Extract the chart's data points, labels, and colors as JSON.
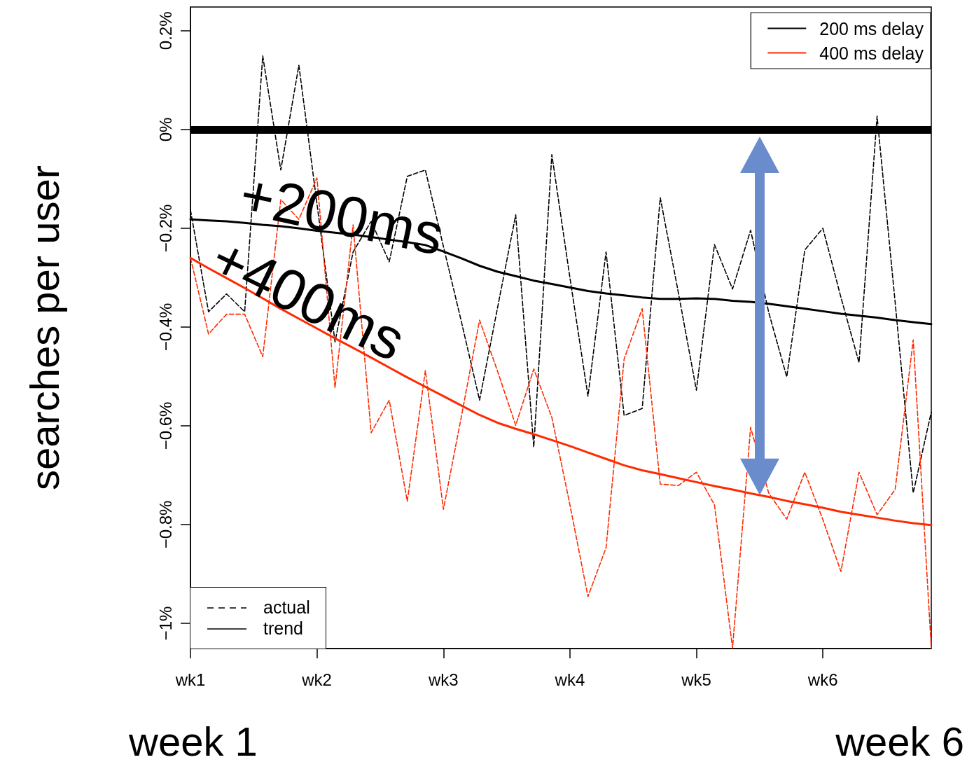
{
  "chart_data": {
    "type": "line",
    "ylabel": "searches per user",
    "categories": [
      "wk1",
      null,
      null,
      null,
      null,
      null,
      null,
      "wk2",
      null,
      null,
      null,
      null,
      null,
      null,
      "wk3",
      null,
      null,
      null,
      null,
      null,
      null,
      "wk4",
      null,
      null,
      null,
      null,
      null,
      null,
      "wk5",
      null,
      null,
      null,
      null,
      null,
      null,
      "wk6",
      null,
      null,
      null,
      null,
      null,
      null
    ],
    "ylim": [
      -1.051,
      0.248
    ],
    "yticks": [
      {
        "value": 0.2,
        "label": "0.2%"
      },
      {
        "value": 0,
        "label": "0%"
      },
      {
        "value": -0.2,
        "label": "−0.2%"
      },
      {
        "value": -0.4,
        "label": "−0.4%"
      },
      {
        "value": -0.6,
        "label": "−0.6%"
      },
      {
        "value": -0.8,
        "label": "−0.8%"
      },
      {
        "value": -1,
        "label": "−1%"
      }
    ],
    "grid": false,
    "legend": "top right",
    "marker": "none",
    "series": [
      {
        "name": "200 ms delay",
        "color": "#000000",
        "line_style": "dashed",
        "values": [
          -0.163,
          -0.369,
          -0.333,
          -0.369,
          0.149,
          -0.082,
          0.13,
          -0.15,
          -0.43,
          -0.248,
          -0.186,
          -0.268,
          -0.095,
          -0.082,
          -0.237,
          -0.39,
          -0.548,
          -0.36,
          -0.173,
          -0.643,
          -0.051,
          -0.3,
          -0.54,
          -0.248,
          -0.579,
          -0.565,
          -0.138,
          -0.33,
          -0.528,
          -0.233,
          -0.323,
          -0.204,
          -0.37,
          -0.501,
          -0.244,
          -0.2,
          -0.34,
          -0.472,
          0.027,
          -0.35,
          -0.736,
          -0.572
        ]
      },
      {
        "name": "400 ms delay",
        "color": "#ff2a00",
        "line_style": "dashed",
        "values": [
          -0.26,
          -0.414,
          -0.374,
          -0.374,
          -0.46,
          -0.142,
          -0.182,
          -0.098,
          -0.523,
          -0.193,
          -0.614,
          -0.548,
          -0.753,
          -0.488,
          -0.769,
          -0.58,
          -0.386,
          -0.49,
          -0.599,
          -0.485,
          -0.583,
          -0.76,
          -0.946,
          -0.847,
          -0.465,
          -0.363,
          -0.718,
          -0.721,
          -0.694,
          -0.76,
          -1.05,
          -0.603,
          -0.736,
          -0.789,
          -0.694,
          -0.79,
          -0.895,
          -0.694,
          -0.78,
          -0.729,
          -0.426,
          -1.05
        ]
      },
      {
        "color": "#000000",
        "line_style": "solid",
        "values": [
          -0.182,
          -0.184,
          -0.186,
          -0.189,
          -0.193,
          -0.196,
          -0.2,
          -0.205,
          -0.209,
          -0.213,
          -0.218,
          -0.223,
          -0.228,
          -0.234,
          -0.247,
          -0.261,
          -0.276,
          -0.288,
          -0.297,
          -0.306,
          -0.313,
          -0.32,
          -0.327,
          -0.332,
          -0.336,
          -0.34,
          -0.343,
          -0.343,
          -0.342,
          -0.343,
          -0.347,
          -0.349,
          -0.353,
          -0.358,
          -0.363,
          -0.368,
          -0.373,
          -0.377,
          -0.381,
          -0.386,
          -0.39,
          -0.394
        ]
      },
      {
        "color": "#ff2a00",
        "line_style": "solid",
        "values": [
          -0.26,
          -0.281,
          -0.301,
          -0.321,
          -0.342,
          -0.363,
          -0.383,
          -0.403,
          -0.423,
          -0.442,
          -0.462,
          -0.482,
          -0.502,
          -0.521,
          -0.54,
          -0.559,
          -0.578,
          -0.594,
          -0.606,
          -0.617,
          -0.629,
          -0.641,
          -0.654,
          -0.667,
          -0.68,
          -0.69,
          -0.698,
          -0.706,
          -0.714,
          -0.722,
          -0.729,
          -0.737,
          -0.744,
          -0.752,
          -0.759,
          -0.766,
          -0.774,
          -0.78,
          -0.786,
          -0.792,
          -0.797,
          -0.801
        ]
      }
    ],
    "ref_lines": [
      {
        "axis": "y",
        "value": 0,
        "color": "#000000"
      }
    ],
    "annotations": [
      "+200ms",
      "+400ms",
      "week 1",
      "week 6",
      "actual",
      "trend"
    ]
  }
}
